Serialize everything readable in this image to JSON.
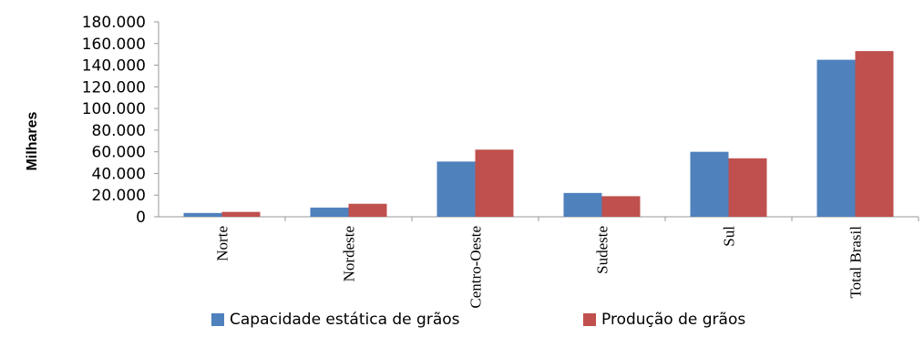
{
  "chart_data": {
    "type": "bar",
    "ylabel": "Milhares",
    "ylim": [
      0,
      180000
    ],
    "yticks": [
      0,
      20000,
      40000,
      60000,
      80000,
      100000,
      120000,
      140000,
      160000,
      180000
    ],
    "ytick_labels": [
      "0",
      "20.000",
      "40.000",
      "60.000",
      "80.000",
      "100.000",
      "120.000",
      "140.000",
      "160.000",
      "180.000"
    ],
    "categories": [
      "Norte",
      "Nordeste",
      "Centro-Oeste",
      "Sudeste",
      "Sul",
      "Total Brasil"
    ],
    "series": [
      {
        "name": "Capacidade estática de grãos",
        "color": "#4f81bd",
        "values": [
          3500,
          8500,
          51000,
          22000,
          60000,
          145000
        ]
      },
      {
        "name": "Produção de grãos",
        "color": "#c0504d",
        "values": [
          4500,
          12000,
          62000,
          19000,
          54000,
          153000
        ]
      }
    ],
    "legend_position": "bottom",
    "grid": false
  }
}
